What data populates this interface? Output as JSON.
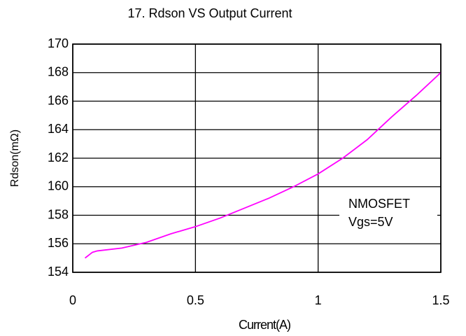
{
  "chart_data": {
    "type": "line",
    "title": "17. Rdson VS Output Current",
    "x_label": "Current(A)",
    "y_label": "Rdson(mΩ)",
    "annotations": [
      "NMOSFET",
      "Vgs=5V"
    ],
    "series": [
      {
        "name": "NMOSFET",
        "color": "#ff00ff",
        "x": [
          0.05,
          0.08,
          0.1,
          0.2,
          0.3,
          0.4,
          0.5,
          0.6,
          0.7,
          0.8,
          0.9,
          1.0,
          1.1,
          1.2,
          1.3,
          1.4,
          1.5
        ],
        "values": [
          155.0,
          155.4,
          155.5,
          155.7,
          156.1,
          156.7,
          157.2,
          157.8,
          158.5,
          159.2,
          160.0,
          160.9,
          162.0,
          163.3,
          164.9,
          166.4,
          168.0
        ]
      }
    ],
    "xlim": [
      0,
      1.5
    ],
    "xticks": [
      0,
      0.5,
      1,
      1.5
    ],
    "ylim": [
      154,
      170
    ],
    "yticks": [
      154,
      156,
      158,
      160,
      162,
      164,
      166,
      168,
      170
    ],
    "grid": true
  }
}
